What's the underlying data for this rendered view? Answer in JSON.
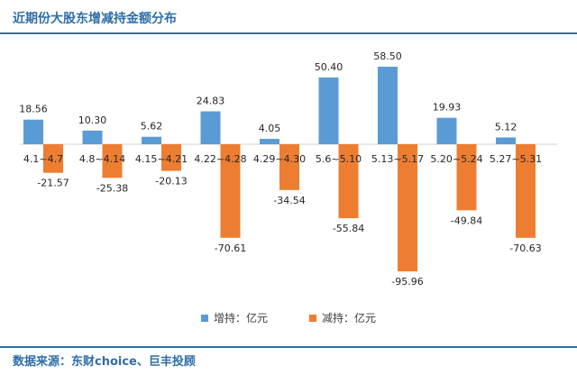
{
  "header": {
    "title": "近期份大股东增减持金额分布"
  },
  "footer": {
    "source": "数据来源：东财choice、巨丰投顾"
  },
  "colors": {
    "increase": "#5b9bd5",
    "decrease": "#ed7d31",
    "brand": "#2f6ea8"
  },
  "chart_data": {
    "type": "bar",
    "categories": [
      "4.1~4.7",
      "4.8~4.14",
      "4.15~4.21",
      "4.22~4.28",
      "4.29~4.30",
      "5.6~5.10",
      "5.13~5.17",
      "5.20~5.24",
      "5.27~5.31"
    ],
    "series": [
      {
        "name": "增持：亿元",
        "values": [
          18.56,
          10.3,
          5.62,
          24.83,
          4.05,
          50.4,
          58.5,
          19.93,
          5.12
        ]
      },
      {
        "name": "减持：亿元",
        "values": [
          -21.57,
          -25.38,
          -20.13,
          -70.61,
          -34.54,
          -55.84,
          -95.96,
          -49.84,
          -70.63
        ]
      }
    ],
    "ylim": [
      -100,
      60
    ],
    "grid": false,
    "legend": "bottom-center"
  }
}
